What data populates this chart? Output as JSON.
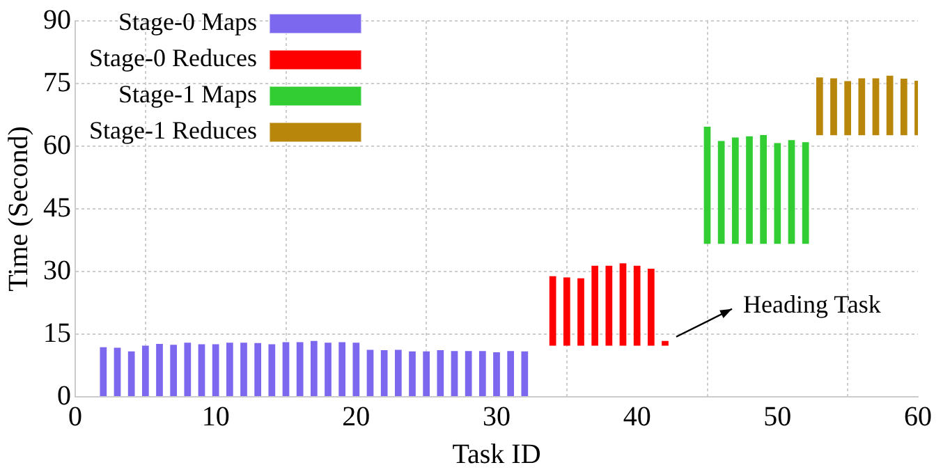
{
  "chart_data": {
    "type": "bar",
    "xlabel": "Task ID",
    "ylabel": "Time (Second)",
    "xlim": [
      0,
      60
    ],
    "xticks": [
      0,
      10,
      20,
      30,
      40,
      50,
      60
    ],
    "ylim": [
      0,
      90
    ],
    "yticks": [
      0,
      15,
      30,
      45,
      60,
      75,
      90
    ],
    "grid": true,
    "legend": "top left",
    "series": [
      {
        "name": "Stage-0 Maps",
        "color": "#7b68ee",
        "x": [
          2,
          3,
          4,
          5,
          6,
          7,
          8,
          9,
          10,
          11,
          12,
          13,
          14,
          15,
          16,
          17,
          18,
          19,
          20,
          21,
          22,
          23,
          24,
          25,
          26,
          27,
          28,
          29,
          30,
          31,
          32
        ],
        "base": [
          0,
          0,
          0,
          0,
          0,
          0,
          0,
          0,
          0,
          0,
          0,
          0,
          0,
          0,
          0,
          0,
          0,
          0,
          0,
          0,
          0,
          0,
          0,
          0,
          0,
          0,
          0,
          0,
          0,
          0,
          0
        ],
        "values": [
          12.2,
          12.1,
          11.2,
          12.6,
          13.0,
          12.8,
          13.3,
          12.9,
          12.9,
          13.3,
          13.3,
          13.2,
          12.9,
          13.4,
          13.4,
          13.7,
          13.3,
          13.4,
          13.3,
          11.6,
          11.5,
          11.6,
          11.2,
          11.2,
          11.5,
          11.3,
          11.3,
          11.3,
          11.0,
          11.3,
          11.2
        ]
      },
      {
        "name": "Stage-0 Reduces",
        "color": "#ff0000",
        "x": [
          34,
          35,
          36,
          37,
          38,
          39,
          40,
          41,
          42
        ],
        "base": [
          12.2,
          12.2,
          12.2,
          12.2,
          12.2,
          12.2,
          12.2,
          12.2,
          12.2
        ],
        "values": [
          17.0,
          16.7,
          16.5,
          19.5,
          19.5,
          20.1,
          19.5,
          18.8,
          1.5
        ]
      },
      {
        "name": "Stage-1 Maps",
        "color": "#32cd32",
        "x": [
          45,
          46,
          47,
          48,
          49,
          50,
          51,
          52
        ],
        "base": [
          36.6,
          36.6,
          36.6,
          36.6,
          36.6,
          36.6,
          36.6,
          36.6
        ],
        "values": [
          28.4,
          25.0,
          25.8,
          26.1,
          26.4,
          24.5,
          25.2,
          24.7
        ]
      },
      {
        "name": "Stage-1 Reduces",
        "color": "#b8860b",
        "x": [
          53,
          54,
          55,
          56,
          57,
          58,
          59,
          60
        ],
        "base": [
          62.6,
          62.6,
          62.6,
          62.6,
          62.6,
          62.6,
          62.6,
          62.6
        ],
        "values": [
          14.2,
          14.0,
          13.3,
          14.0,
          14.0,
          14.6,
          13.9,
          13.4
        ]
      }
    ],
    "annotations": [
      {
        "text": "Heading Task",
        "x": 42,
        "y": 13.7
      }
    ]
  }
}
